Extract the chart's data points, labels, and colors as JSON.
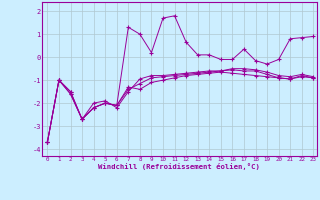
{
  "xlabel": "Windchill (Refroidissement éolien,°C)",
  "background_color": "#cceeff",
  "grid_color": "#b0c8d0",
  "line_color": "#990099",
  "x_min": -0.5,
  "x_max": 23.3,
  "y_min": -4.3,
  "y_max": 2.4,
  "yticks": [
    -4,
    -3,
    -2,
    -1,
    0,
    1,
    2
  ],
  "xticks": [
    0,
    1,
    2,
    3,
    4,
    5,
    6,
    7,
    8,
    9,
    10,
    11,
    12,
    13,
    14,
    15,
    16,
    17,
    18,
    19,
    20,
    21,
    22,
    23
  ],
  "series1": [
    [
      0,
      -3.7
    ],
    [
      1,
      -1.0
    ],
    [
      2,
      -1.5
    ],
    [
      3,
      -2.7
    ],
    [
      4,
      -2.2
    ],
    [
      5,
      -2.0
    ],
    [
      6,
      -2.1
    ],
    [
      7,
      -1.3
    ],
    [
      8,
      -1.4
    ],
    [
      9,
      -1.1
    ],
    [
      10,
      -1.0
    ],
    [
      11,
      -0.9
    ],
    [
      12,
      -0.8
    ],
    [
      13,
      -0.75
    ],
    [
      14,
      -0.7
    ],
    [
      15,
      -0.65
    ],
    [
      16,
      -0.7
    ],
    [
      17,
      -0.75
    ],
    [
      18,
      -0.8
    ],
    [
      19,
      -0.85
    ],
    [
      20,
      -0.9
    ],
    [
      21,
      -0.95
    ],
    [
      22,
      -0.85
    ],
    [
      23,
      -0.9
    ]
  ],
  "series2": [
    [
      0,
      -3.7
    ],
    [
      1,
      -1.0
    ],
    [
      2,
      -1.5
    ],
    [
      3,
      -2.7
    ],
    [
      4,
      -2.2
    ],
    [
      5,
      -2.0
    ],
    [
      6,
      -2.1
    ],
    [
      7,
      1.3
    ],
    [
      8,
      1.0
    ],
    [
      9,
      0.2
    ],
    [
      10,
      1.7
    ],
    [
      11,
      1.8
    ],
    [
      12,
      0.65
    ],
    [
      13,
      0.1
    ],
    [
      14,
      0.1
    ],
    [
      15,
      -0.1
    ],
    [
      16,
      -0.1
    ],
    [
      17,
      0.35
    ],
    [
      18,
      -0.15
    ],
    [
      19,
      -0.3
    ],
    [
      20,
      -0.1
    ],
    [
      21,
      0.8
    ],
    [
      22,
      0.85
    ],
    [
      23,
      0.9
    ]
  ],
  "series3": [
    [
      0,
      -3.7
    ],
    [
      1,
      -1.0
    ],
    [
      2,
      -1.6
    ],
    [
      3,
      -2.7
    ],
    [
      4,
      -2.0
    ],
    [
      5,
      -1.9
    ],
    [
      6,
      -2.2
    ],
    [
      7,
      -1.5
    ],
    [
      8,
      -0.95
    ],
    [
      9,
      -0.8
    ],
    [
      10,
      -0.8
    ],
    [
      11,
      -0.75
    ],
    [
      12,
      -0.7
    ],
    [
      13,
      -0.65
    ],
    [
      14,
      -0.6
    ],
    [
      15,
      -0.6
    ],
    [
      16,
      -0.5
    ],
    [
      17,
      -0.5
    ],
    [
      18,
      -0.55
    ],
    [
      19,
      -0.65
    ],
    [
      20,
      -0.8
    ],
    [
      21,
      -0.85
    ],
    [
      22,
      -0.75
    ],
    [
      23,
      -0.85
    ]
  ],
  "series4": [
    [
      0,
      -3.7
    ],
    [
      1,
      -1.0
    ],
    [
      2,
      -1.6
    ],
    [
      3,
      -2.7
    ],
    [
      4,
      -2.2
    ],
    [
      5,
      -2.0
    ],
    [
      6,
      -2.1
    ],
    [
      7,
      -1.4
    ],
    [
      8,
      -1.15
    ],
    [
      9,
      -0.9
    ],
    [
      10,
      -0.85
    ],
    [
      11,
      -0.8
    ],
    [
      12,
      -0.75
    ],
    [
      13,
      -0.7
    ],
    [
      14,
      -0.65
    ],
    [
      15,
      -0.6
    ],
    [
      16,
      -0.55
    ],
    [
      17,
      -0.6
    ],
    [
      18,
      -0.6
    ],
    [
      19,
      -0.75
    ],
    [
      20,
      -0.9
    ],
    [
      21,
      -0.95
    ],
    [
      22,
      -0.8
    ],
    [
      23,
      -0.9
    ]
  ]
}
